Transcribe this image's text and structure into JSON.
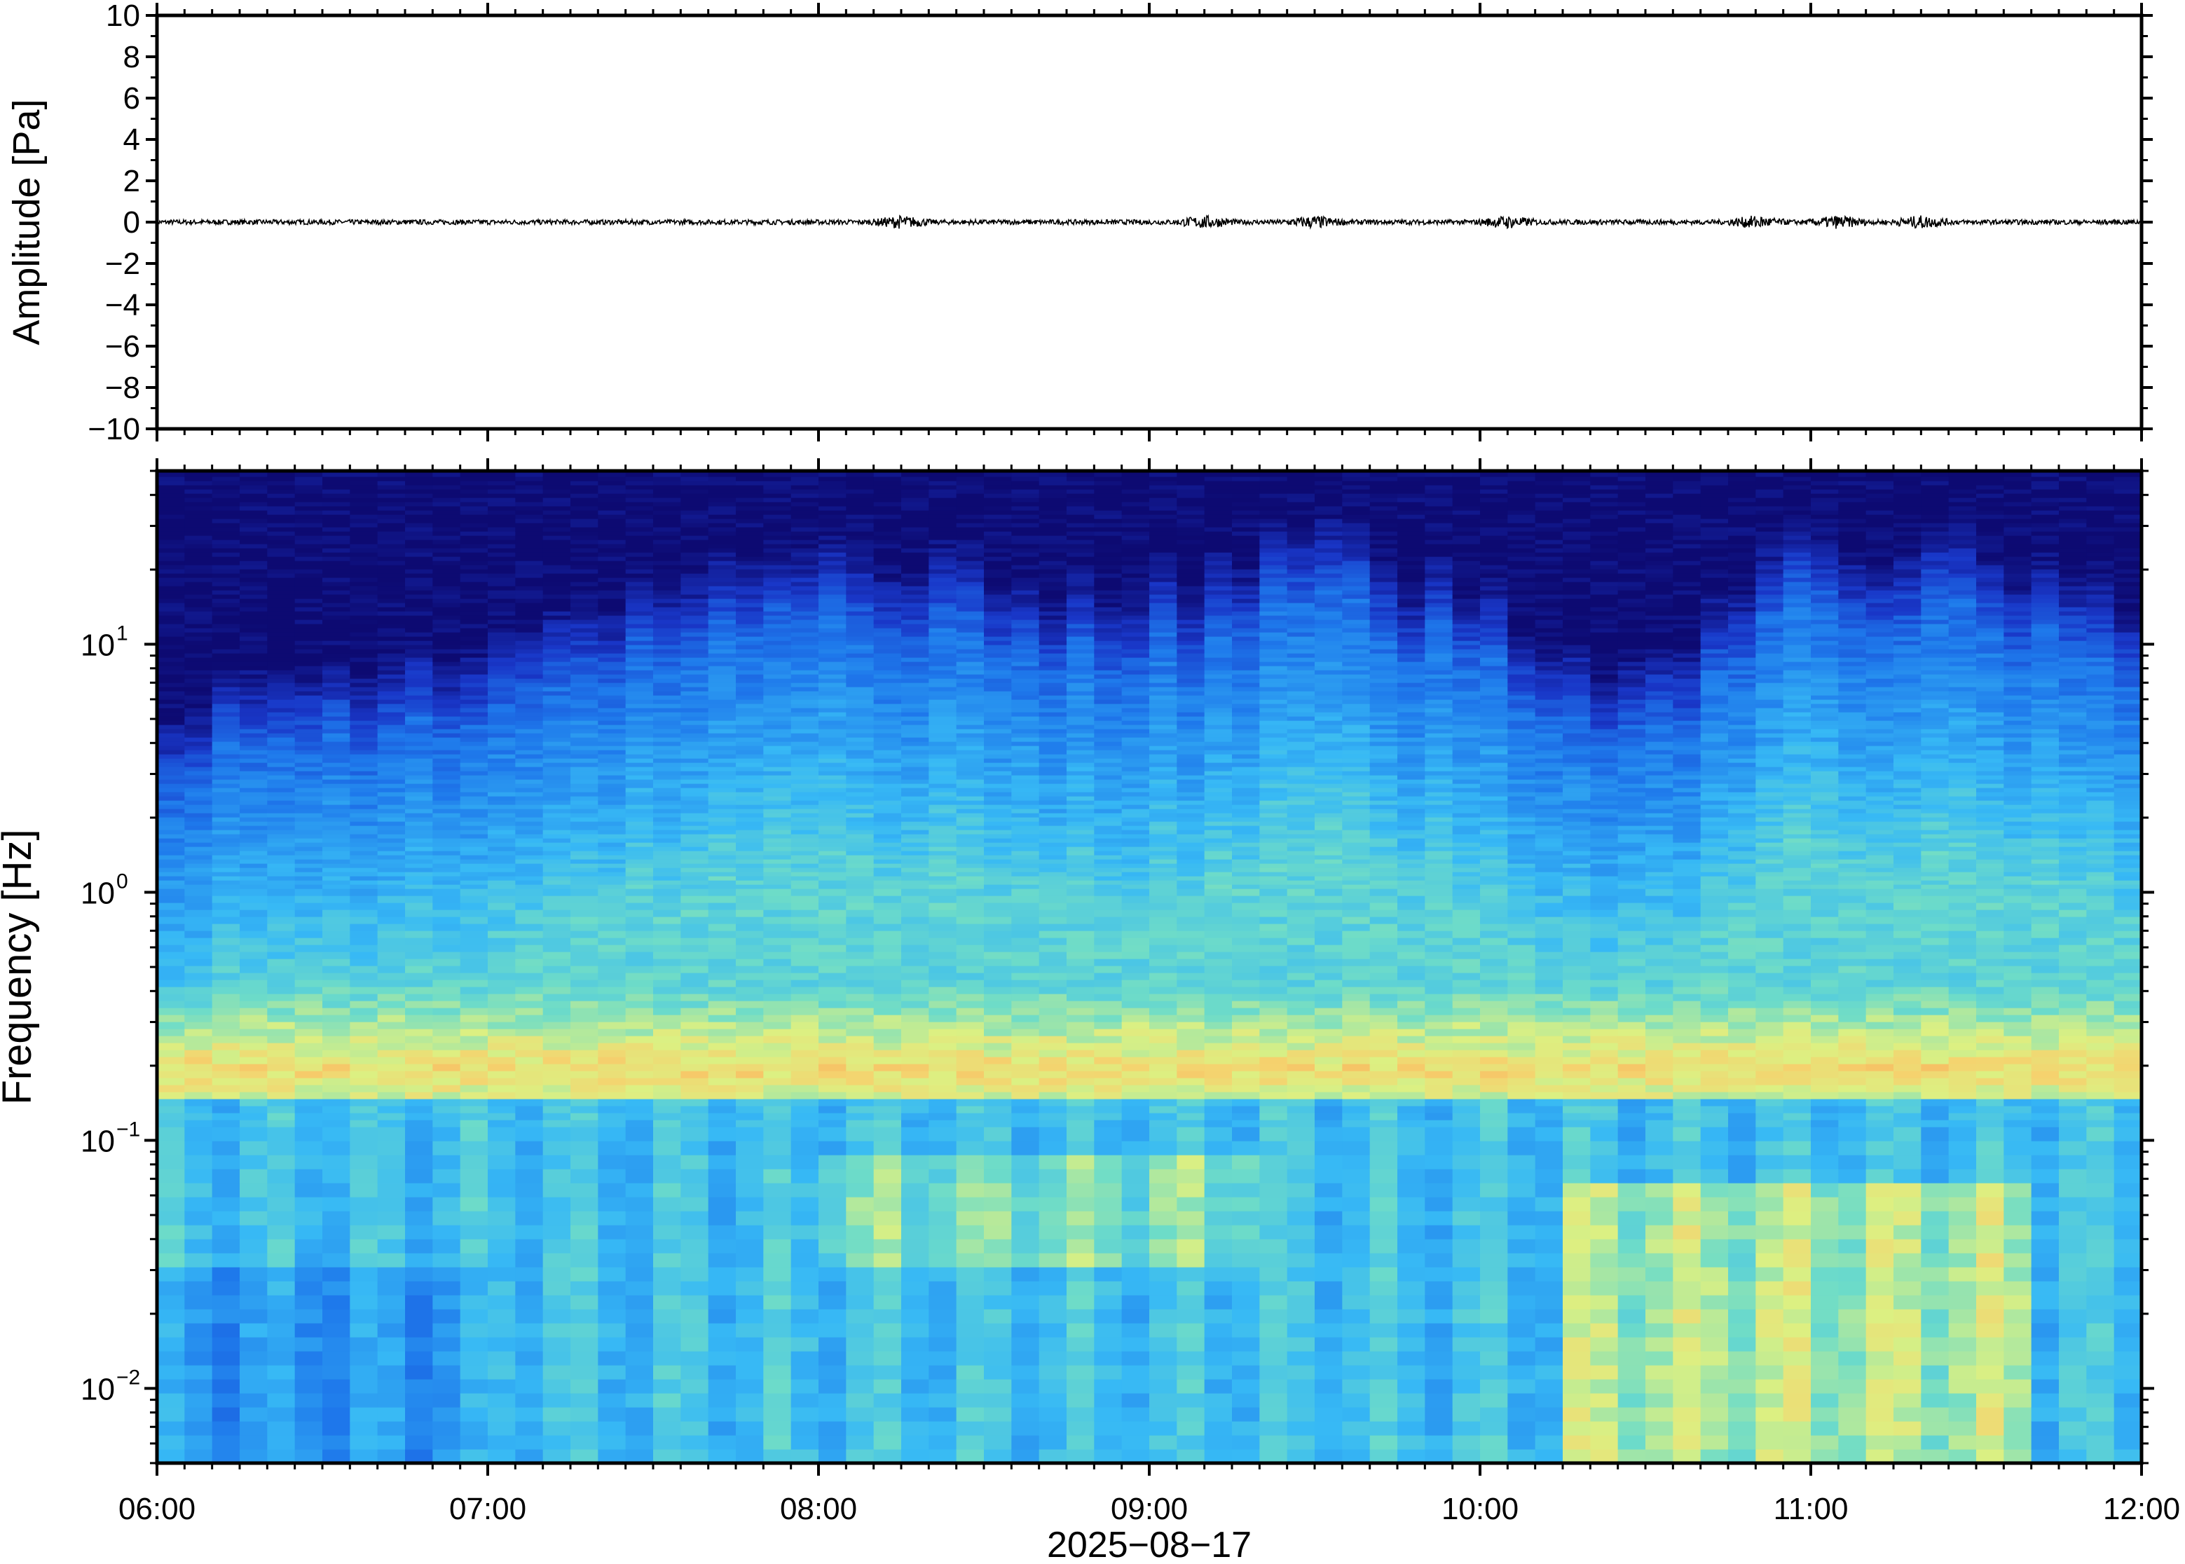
{
  "chart_data": [
    {
      "type": "line",
      "panel": "waveform",
      "ylabel": "Amplitude [Pa]",
      "ylim": [
        -10,
        10
      ],
      "yticks": [
        10,
        8,
        6,
        4,
        2,
        0,
        -2,
        -4,
        -6,
        -8,
        -10
      ],
      "ytick_labels": [
        "10",
        "8",
        "6",
        "4",
        "2",
        "0",
        "−2",
        "−4",
        "−6",
        "−8",
        "−10"
      ],
      "xlim": [
        "06:00",
        "12:00"
      ],
      "grid": false,
      "series": [
        {
          "color": "#000000",
          "mean": 0,
          "approx_peak_amplitude": 0.35,
          "note_bursts_at": [
            "08:15",
            "09:10",
            "09:30",
            "10:05",
            "10:50",
            "11:05",
            "11:20"
          ]
        }
      ]
    },
    {
      "type": "heatmap",
      "panel": "spectrogram",
      "ylabel": "Frequency [Hz]",
      "xlabel": "2025−08−17",
      "yscale": "log",
      "ylim": [
        0.005,
        50
      ],
      "yticks": [
        0.01,
        0.1,
        1,
        10
      ],
      "ytick_labels": [
        {
          "base": "10",
          "exp": "−2"
        },
        {
          "base": "10",
          "exp": "−1"
        },
        {
          "base": "10",
          "exp": "0"
        },
        {
          "base": "10",
          "exp": "1"
        }
      ],
      "x": [
        "06:00",
        "07:00",
        "08:00",
        "09:00",
        "10:00",
        "11:00",
        "12:00"
      ],
      "xlim": [
        "06:00",
        "12:00"
      ],
      "colormap": "jet-like",
      "colors": {
        "low": "#0d0a72",
        "mid": "#3aa8f0",
        "high": "#f2e87a",
        "peak": "#f7b860"
      },
      "features": {
        "microbarom_band_hz": [
          0.14,
          0.25
        ],
        "noise_ceiling_hz_by_hour": [
          {
            "time": "06:00",
            "hz": 3
          },
          {
            "time": "07:00",
            "hz": 5
          },
          {
            "time": "08:00",
            "hz": 12
          },
          {
            "time": "09:00",
            "hz": 8
          },
          {
            "time": "09:30",
            "hz": 14
          },
          {
            "time": "10:30",
            "hz": 4
          },
          {
            "time": "11:00",
            "hz": 14
          },
          {
            "time": "12:00",
            "hz": 8
          }
        ]
      }
    }
  ]
}
